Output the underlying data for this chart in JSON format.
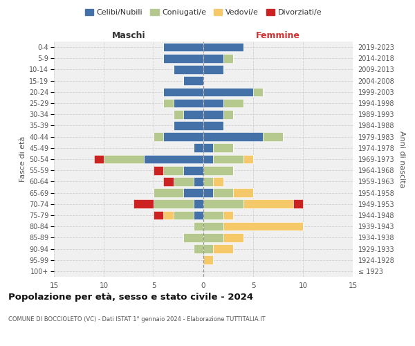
{
  "age_groups": [
    "100+",
    "95-99",
    "90-94",
    "85-89",
    "80-84",
    "75-79",
    "70-74",
    "65-69",
    "60-64",
    "55-59",
    "50-54",
    "45-49",
    "40-44",
    "35-39",
    "30-34",
    "25-29",
    "20-24",
    "15-19",
    "10-14",
    "5-9",
    "0-4"
  ],
  "birth_years": [
    "≤ 1923",
    "1924-1928",
    "1929-1933",
    "1934-1938",
    "1939-1943",
    "1944-1948",
    "1949-1953",
    "1954-1958",
    "1959-1963",
    "1964-1968",
    "1969-1973",
    "1974-1978",
    "1979-1983",
    "1984-1988",
    "1989-1993",
    "1994-1998",
    "1999-2003",
    "2004-2008",
    "2009-2013",
    "2014-2018",
    "2019-2023"
  ],
  "colors": {
    "celibe": "#4472a8",
    "coniugato": "#b5c98e",
    "vedovo": "#f5c96a",
    "divorziato": "#cc2222"
  },
  "maschi": {
    "celibe": [
      0,
      0,
      0,
      0,
      0,
      1,
      1,
      2,
      1,
      2,
      6,
      1,
      4,
      3,
      2,
      3,
      4,
      2,
      3,
      4,
      4
    ],
    "coniugato": [
      0,
      0,
      1,
      2,
      1,
      2,
      4,
      3,
      2,
      2,
      4,
      0,
      1,
      0,
      1,
      1,
      0,
      0,
      0,
      0,
      0
    ],
    "vedovo": [
      0,
      0,
      0,
      0,
      0,
      1,
      0,
      0,
      0,
      0,
      0,
      0,
      0,
      0,
      0,
      0,
      0,
      0,
      0,
      0,
      0
    ],
    "divorziato": [
      0,
      0,
      0,
      0,
      0,
      1,
      2,
      0,
      1,
      1,
      1,
      0,
      0,
      0,
      0,
      0,
      0,
      0,
      0,
      0,
      0
    ]
  },
  "femmine": {
    "celibe": [
      0,
      0,
      0,
      0,
      0,
      0,
      0,
      1,
      0,
      0,
      1,
      1,
      6,
      2,
      2,
      2,
      5,
      0,
      2,
      2,
      4
    ],
    "coniugato": [
      0,
      0,
      1,
      2,
      2,
      2,
      4,
      2,
      1,
      3,
      3,
      2,
      2,
      0,
      1,
      2,
      1,
      0,
      0,
      1,
      0
    ],
    "vedovo": [
      0,
      1,
      2,
      2,
      8,
      1,
      5,
      2,
      1,
      0,
      1,
      0,
      0,
      0,
      0,
      0,
      0,
      0,
      0,
      0,
      0
    ],
    "divorziato": [
      0,
      0,
      0,
      0,
      0,
      0,
      1,
      0,
      0,
      0,
      0,
      0,
      0,
      0,
      0,
      0,
      0,
      0,
      0,
      0,
      0
    ]
  },
  "xlim": 15,
  "title": "Popolazione per età, sesso e stato civile - 2024",
  "subtitle": "COMUNE DI BOCCIOLETO (VC) - Dati ISTAT 1° gennaio 2024 - Elaborazione TUTTITALIA.IT",
  "xlabel_left": "Maschi",
  "xlabel_right": "Femmine",
  "ylabel": "Fasce di età",
  "ylabel_right": "Anni di nascita",
  "legend_labels": [
    "Celibi/Nubili",
    "Coniugati/e",
    "Vedovi/e",
    "Divorziati/e"
  ],
  "bg_color": "#f0f0f0",
  "grid_color": "#cccccc"
}
